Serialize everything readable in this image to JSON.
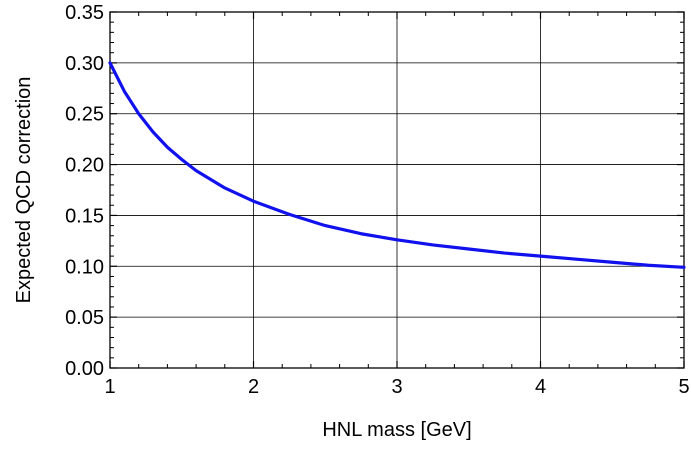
{
  "chart_data": {
    "type": "line",
    "title": "",
    "xlabel": "HNL mass [GeV]",
    "ylabel": "Expected QCD correction",
    "xlim": [
      1,
      5
    ],
    "ylim": [
      0,
      0.35
    ],
    "x_ticks": [
      1,
      2,
      3,
      4,
      5
    ],
    "x_tick_labels": [
      "1",
      "2",
      "3",
      "4",
      "5"
    ],
    "y_ticks": [
      0,
      0.05,
      0.1,
      0.15,
      0.2,
      0.25,
      0.3,
      0.35
    ],
    "y_tick_labels": [
      "0.00",
      "0.05",
      "0.10",
      "0.15",
      "0.20",
      "0.25",
      "0.30",
      "0.35"
    ],
    "grid": true,
    "legend": "none",
    "series": [
      {
        "color": "#1111ee",
        "x": [
          1.0,
          1.1,
          1.2,
          1.3,
          1.4,
          1.5,
          1.6,
          1.8,
          2.0,
          2.25,
          2.5,
          2.75,
          3.0,
          3.25,
          3.5,
          3.75,
          4.0,
          4.25,
          4.5,
          4.75,
          5.0
        ],
        "y": [
          0.3,
          0.272,
          0.25,
          0.232,
          0.217,
          0.205,
          0.194,
          0.177,
          0.164,
          0.151,
          0.14,
          0.132,
          0.126,
          0.121,
          0.117,
          0.113,
          0.11,
          0.107,
          0.104,
          0.101,
          0.099
        ]
      }
    ]
  }
}
